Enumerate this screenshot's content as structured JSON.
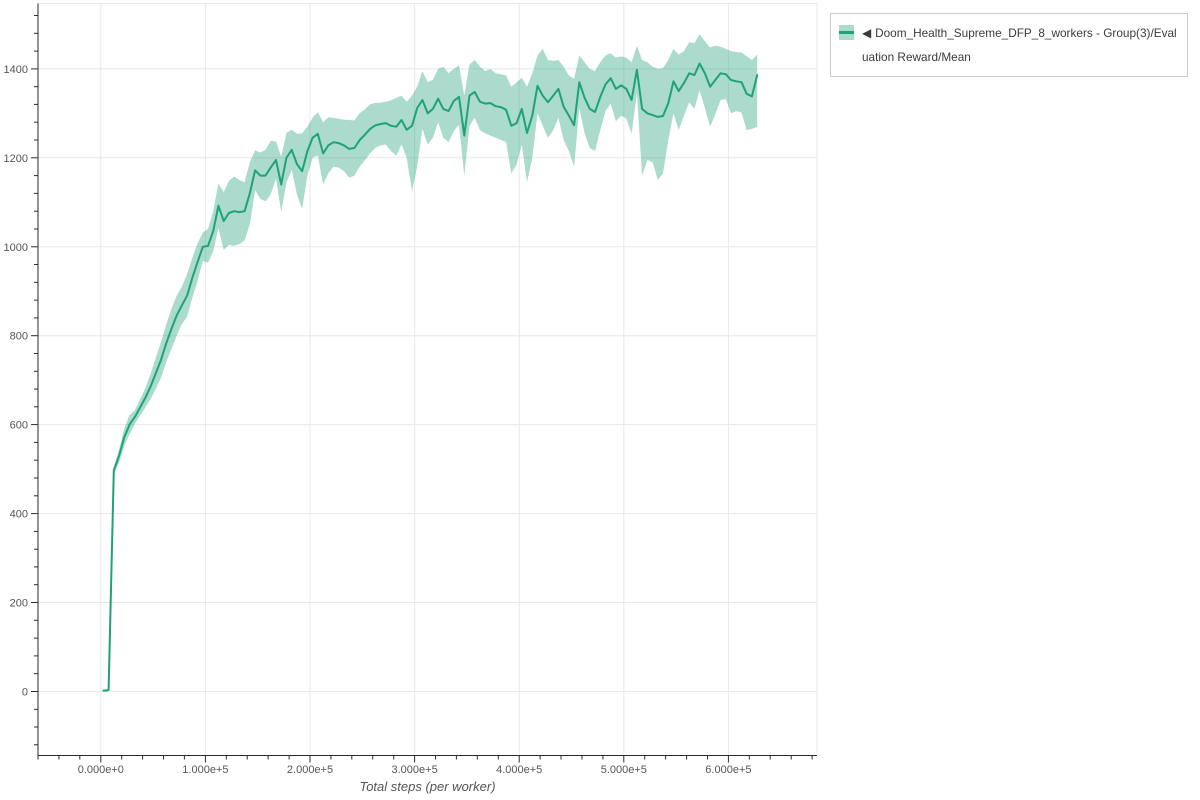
{
  "colors": {
    "line": "#1fa179",
    "band": "rgba(31,161,121,0.38)",
    "grid": "#e8e8e8",
    "axis": "#2b2b2b",
    "tick_label": "#555555",
    "axis_title": "#555555",
    "legend_border": "#cccccc",
    "legend_text": "#3b3b3b",
    "background": "#ffffff"
  },
  "legend": {
    "marker": "◀",
    "items": [
      {
        "label": "Doom_Health_Supreme_DFP_8_workers - Group(3)/Evaluation Reward/Mean"
      }
    ]
  },
  "chart_data": {
    "type": "line",
    "title": "",
    "xlabel": "Total steps (per worker)",
    "ylabel": "",
    "grid": true,
    "legend_position": "top-right-outside",
    "xlim": [
      -60000,
      684700
    ],
    "ylim": [
      -144,
      1547
    ],
    "x_ticks": {
      "values": [
        0,
        100000,
        200000,
        300000,
        400000,
        500000,
        600000
      ],
      "labels": [
        "0.000e+0",
        "1.000e+5",
        "2.000e+5",
        "3.000e+5",
        "4.000e+5",
        "5.000e+5",
        "6.000e+5"
      ],
      "major_step": 100000,
      "minor_step": 20000,
      "minor_start": -60000,
      "minor_end": 680000
    },
    "y_ticks": {
      "values": [
        0,
        200,
        400,
        600,
        800,
        1000,
        1200,
        1400
      ],
      "labels": [
        "0",
        "200",
        "400",
        "600",
        "800",
        "1000",
        "1200",
        "1400"
      ],
      "major_step": 200,
      "minor_step": 40,
      "minor_start": -120,
      "minor_end": 1520
    },
    "series": [
      {
        "name": "Doom_Health_Supreme_DFP_8_workers - Group(3)/Evaluation Reward/Mean",
        "color": "#1fa179",
        "band_color": "rgba(31,161,121,0.38)",
        "x": [
          2500,
          7500,
          12500,
          17500,
          22500,
          27500,
          32500,
          37500,
          42500,
          47500,
          52500,
          57500,
          62500,
          67500,
          72500,
          77500,
          82500,
          87500,
          92500,
          97500,
          102500,
          107500,
          112500,
          117500,
          122500,
          127500,
          132500,
          137500,
          142500,
          147500,
          152500,
          157500,
          162500,
          167500,
          172500,
          177500,
          182500,
          187500,
          192500,
          197500,
          202500,
          207500,
          212500,
          217500,
          222500,
          227500,
          232500,
          237500,
          242500,
          247500,
          252500,
          257500,
          262500,
          267500,
          272500,
          277500,
          282500,
          287500,
          292500,
          297500,
          302500,
          307500,
          312500,
          317500,
          322500,
          327500,
          332500,
          337500,
          342500,
          347500,
          352500,
          357500,
          362500,
          367500,
          372500,
          377500,
          382500,
          387500,
          392500,
          397500,
          402500,
          407500,
          412500,
          417500,
          422500,
          427500,
          432500,
          437500,
          442500,
          447500,
          452500,
          457500,
          462500,
          467500,
          472500,
          477500,
          482500,
          487500,
          492500,
          497500,
          502500,
          507500,
          512500,
          517500,
          522500,
          527500,
          532500,
          537500,
          542500,
          547500,
          552500,
          557500,
          562500,
          567500,
          572500,
          577500,
          582500,
          587500,
          592500,
          597500,
          602500,
          607500,
          612500,
          617500,
          622500,
          627500
        ],
        "mean": [
          2,
          3,
          497,
          530,
          572,
          600,
          617,
          638,
          660,
          685,
          715,
          745,
          782,
          815,
          845,
          868,
          890,
          930,
          965,
          1000,
          1002,
          1035,
          1092,
          1058,
          1076,
          1080,
          1078,
          1080,
          1120,
          1172,
          1160,
          1160,
          1178,
          1195,
          1140,
          1200,
          1218,
          1186,
          1170,
          1215,
          1245,
          1254,
          1210,
          1228,
          1235,
          1233,
          1228,
          1220,
          1222,
          1240,
          1252,
          1265,
          1273,
          1276,
          1278,
          1272,
          1270,
          1285,
          1263,
          1272,
          1312,
          1330,
          1300,
          1310,
          1333,
          1310,
          1305,
          1328,
          1337,
          1250,
          1340,
          1348,
          1326,
          1322,
          1323,
          1316,
          1314,
          1308,
          1272,
          1278,
          1310,
          1256,
          1295,
          1362,
          1340,
          1325,
          1340,
          1355,
          1315,
          1295,
          1273,
          1370,
          1335,
          1310,
          1303,
          1337,
          1365,
          1379,
          1355,
          1363,
          1355,
          1330,
          1398,
          1310,
          1300,
          1296,
          1292,
          1294,
          1323,
          1372,
          1350,
          1368,
          1390,
          1386,
          1412,
          1390,
          1360,
          1375,
          1390,
          1388,
          1375,
          1372,
          1370,
          1344,
          1338,
          1386
        ],
        "lower": [
          0,
          1,
          489,
          515,
          552,
          578,
          602,
          620,
          638,
          657,
          680,
          705,
          740,
          770,
          800,
          826,
          842,
          885,
          923,
          968,
          964,
          990,
          1042,
          993,
          1004,
          1002,
          1006,
          1015,
          1050,
          1127,
          1108,
          1102,
          1118,
          1153,
          1078,
          1144,
          1173,
          1118,
          1085,
          1160,
          1200,
          1205,
          1140,
          1165,
          1180,
          1178,
          1170,
          1155,
          1160,
          1180,
          1195,
          1210,
          1222,
          1228,
          1230,
          1215,
          1205,
          1230,
          1200,
          1125,
          1180,
          1265,
          1230,
          1245,
          1280,
          1245,
          1235,
          1260,
          1275,
          1160,
          1272,
          1290,
          1262,
          1255,
          1250,
          1245,
          1240,
          1235,
          1165,
          1185,
          1230,
          1145,
          1200,
          1300,
          1272,
          1245,
          1262,
          1290,
          1240,
          1215,
          1180,
          1312,
          1255,
          1222,
          1215,
          1262,
          1305,
          1322,
          1282,
          1295,
          1288,
          1255,
          1345,
          1160,
          1195,
          1190,
          1150,
          1165,
          1240,
          1300,
          1262,
          1295,
          1325,
          1310,
          1352,
          1312,
          1270,
          1298,
          1330,
          1332,
          1300,
          1305,
          1302,
          1262,
          1265,
          1270
        ],
        "upper": [
          4,
          5,
          505,
          545,
          592,
          622,
          632,
          656,
          682,
          713,
          750,
          785,
          824,
          860,
          890,
          910,
          938,
          975,
          1007,
          1032,
          1040,
          1080,
          1142,
          1123,
          1148,
          1158,
          1150,
          1145,
          1190,
          1217,
          1212,
          1218,
          1238,
          1237,
          1202,
          1256,
          1263,
          1254,
          1255,
          1270,
          1290,
          1303,
          1280,
          1291,
          1290,
          1288,
          1286,
          1285,
          1284,
          1300,
          1309,
          1320,
          1324,
          1324,
          1326,
          1329,
          1335,
          1340,
          1326,
          1340,
          1360,
          1395,
          1370,
          1375,
          1400,
          1405,
          1390,
          1400,
          1408,
          1340,
          1410,
          1420,
          1405,
          1395,
          1400,
          1390,
          1388,
          1385,
          1360,
          1370,
          1380,
          1360,
          1390,
          1430,
          1445,
          1420,
          1418,
          1420,
          1405,
          1385,
          1378,
          1430,
          1415,
          1400,
          1395,
          1415,
          1430,
          1435,
          1425,
          1428,
          1425,
          1415,
          1452,
          1420,
          1415,
          1405,
          1400,
          1402,
          1420,
          1445,
          1432,
          1440,
          1460,
          1458,
          1478,
          1462,
          1448,
          1452,
          1450,
          1445,
          1440,
          1438,
          1437,
          1428,
          1420,
          1432
        ]
      }
    ]
  }
}
